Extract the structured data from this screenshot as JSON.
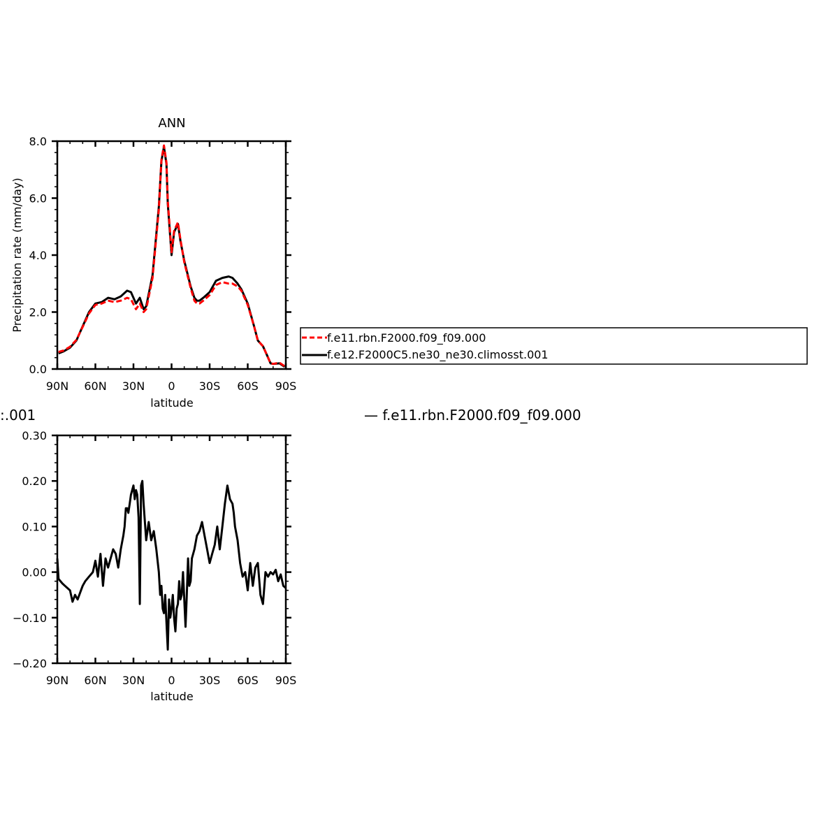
{
  "colors": {
    "axes": "#000000",
    "series_a": "#ff0000",
    "series_b": "#000000"
  },
  "legend": {
    "entries": [
      {
        "label": "f.e11.rbn.F2000.f09_f09.000",
        "style": "dashed",
        "color": "#ff0000"
      },
      {
        "label": "f.e12.F2000C5.ne30_ne30.climosst.001",
        "style": "solid",
        "color": "#000000"
      }
    ]
  },
  "clipped_text": {
    "left": ":.001",
    "right": "— f.e11.rbn.F2000.f09_f09.000"
  },
  "chart_data": [
    {
      "type": "line",
      "title": "ANN",
      "xlabel": "latitude",
      "ylabel": "Precipitation rate (mm/day)",
      "xlim": [
        90,
        -90
      ],
      "ylim": [
        0,
        8
      ],
      "xticks": [
        {
          "v": 90,
          "label": "90N"
        },
        {
          "v": 60,
          "label": "60N"
        },
        {
          "v": 30,
          "label": "30N"
        },
        {
          "v": 0,
          "label": "0"
        },
        {
          "v": -30,
          "label": "30S"
        },
        {
          "v": -60,
          "label": "60S"
        },
        {
          "v": -90,
          "label": "90S"
        }
      ],
      "yticks": [
        {
          "v": 0,
          "label": "0.0"
        },
        {
          "v": 2,
          "label": "2.0"
        },
        {
          "v": 4,
          "label": "4.0"
        },
        {
          "v": 6,
          "label": "6.0"
        },
        {
          "v": 8,
          "label": "8.0"
        }
      ],
      "legend_position": "right",
      "series": [
        {
          "name": "f.e12.F2000C5.ne30_ne30.climosst.001",
          "style": "solid",
          "color": "#000000",
          "x": [
            89,
            85,
            80,
            75,
            70,
            65,
            60,
            55,
            50,
            45,
            40,
            35,
            32,
            28,
            25,
            22,
            20,
            15,
            10,
            8,
            6,
            4,
            3,
            0,
            -2,
            -5,
            -7,
            -10,
            -15,
            -18,
            -20,
            -22,
            -25,
            -30,
            -35,
            -40,
            -45,
            -48,
            -52,
            -55,
            -60,
            -65,
            -68,
            -72,
            -75,
            -78,
            -80,
            -85,
            -89
          ],
          "y": [
            0.55,
            0.62,
            0.75,
            1.0,
            1.5,
            2.0,
            2.3,
            2.35,
            2.5,
            2.45,
            2.55,
            2.75,
            2.7,
            2.3,
            2.5,
            2.1,
            2.2,
            3.3,
            5.7,
            7.3,
            7.8,
            7.2,
            5.8,
            4.0,
            4.8,
            5.1,
            4.5,
            3.8,
            2.9,
            2.5,
            2.4,
            2.4,
            2.5,
            2.7,
            3.1,
            3.2,
            3.25,
            3.2,
            3.0,
            2.8,
            2.3,
            1.5,
            1.0,
            0.8,
            0.5,
            0.2,
            0.18,
            0.2,
            0.08
          ]
        },
        {
          "name": "f.e11.rbn.F2000.f09_f09.000",
          "style": "dashed",
          "color": "#ff0000",
          "x": [
            89,
            85,
            80,
            75,
            70,
            65,
            60,
            55,
            50,
            45,
            40,
            35,
            32,
            28,
            25,
            22,
            20,
            15,
            10,
            8,
            6,
            4,
            3,
            0,
            -2,
            -5,
            -7,
            -10,
            -15,
            -18,
            -20,
            -22,
            -25,
            -30,
            -35,
            -40,
            -45,
            -48,
            -52,
            -55,
            -60,
            -65,
            -68,
            -72,
            -75,
            -78,
            -80,
            -85,
            -89
          ],
          "y": [
            0.6,
            0.65,
            0.78,
            1.02,
            1.48,
            1.95,
            2.25,
            2.3,
            2.4,
            2.35,
            2.4,
            2.5,
            2.45,
            2.1,
            2.3,
            2.0,
            2.1,
            3.2,
            5.6,
            7.35,
            7.85,
            7.25,
            5.9,
            4.1,
            4.85,
            5.15,
            4.55,
            3.75,
            2.85,
            2.4,
            2.3,
            2.3,
            2.4,
            2.6,
            2.95,
            3.05,
            3.0,
            3.0,
            2.9,
            2.75,
            2.25,
            1.5,
            1.0,
            0.8,
            0.5,
            0.2,
            0.18,
            0.22,
            0.1
          ]
        }
      ]
    },
    {
      "type": "line",
      "xlabel": "latitude",
      "ylabel": "",
      "xlim": [
        90,
        -90
      ],
      "ylim": [
        -0.2,
        0.3
      ],
      "xticks": [
        {
          "v": 90,
          "label": "90N"
        },
        {
          "v": 60,
          "label": "60N"
        },
        {
          "v": 30,
          "label": "30N"
        },
        {
          "v": 0,
          "label": "0"
        },
        {
          "v": -30,
          "label": "30S"
        },
        {
          "v": -60,
          "label": "60S"
        },
        {
          "v": -90,
          "label": "90S"
        }
      ],
      "yticks": [
        {
          "v": -0.2,
          "label": "−0.20"
        },
        {
          "v": -0.1,
          "label": "−0.10"
        },
        {
          "v": 0,
          "label": "0.00"
        },
        {
          "v": 0.1,
          "label": "0.10"
        },
        {
          "v": 0.2,
          "label": "0.20"
        },
        {
          "v": 0.3,
          "label": "0.30"
        }
      ],
      "series": [
        {
          "name": "",
          "style": "solid",
          "color": "#000000",
          "x": [
            90,
            89,
            86,
            84,
            80,
            78,
            76,
            74,
            70,
            68,
            65,
            62,
            60,
            58,
            56,
            54,
            52,
            50,
            48,
            46,
            44,
            42,
            40,
            38,
            37,
            36,
            35,
            34,
            33,
            32,
            30,
            29,
            28,
            27,
            26,
            25,
            24,
            23,
            22,
            20,
            18,
            16,
            14,
            12,
            10,
            9,
            8,
            7,
            6,
            5,
            4,
            3,
            2,
            1,
            0,
            -1,
            -2,
            -3,
            -4,
            -5,
            -6,
            -7,
            -8,
            -9,
            -10,
            -11,
            -12,
            -13,
            -14,
            -15,
            -16,
            -18,
            -20,
            -22,
            -24,
            -26,
            -28,
            -30,
            -32,
            -34,
            -36,
            -38,
            -40,
            -42,
            -44,
            -46,
            -48,
            -49,
            -50,
            -52,
            -54,
            -56,
            -58,
            -60,
            -62,
            -64,
            -66,
            -68,
            -70,
            -72,
            -74,
            -76,
            -78,
            -80,
            -82,
            -84,
            -86,
            -88,
            -90
          ],
          "y": [
            0.03,
            -0.015,
            -0.025,
            -0.03,
            -0.04,
            -0.065,
            -0.05,
            -0.06,
            -0.03,
            -0.02,
            -0.01,
            0.0,
            0.025,
            -0.01,
            0.04,
            -0.03,
            0.03,
            0.01,
            0.03,
            0.05,
            0.04,
            0.01,
            0.05,
            0.08,
            0.1,
            0.14,
            0.14,
            0.13,
            0.15,
            0.17,
            0.19,
            0.16,
            0.18,
            0.17,
            0.12,
            -0.07,
            0.19,
            0.2,
            0.15,
            0.07,
            0.11,
            0.07,
            0.09,
            0.05,
            0.0,
            -0.05,
            -0.03,
            -0.08,
            -0.09,
            -0.05,
            -0.11,
            -0.17,
            -0.06,
            -0.1,
            -0.08,
            -0.05,
            -0.1,
            -0.13,
            -0.08,
            -0.07,
            -0.02,
            -0.06,
            -0.05,
            0.0,
            -0.06,
            -0.12,
            -0.05,
            0.03,
            -0.03,
            -0.02,
            0.03,
            0.05,
            0.08,
            0.09,
            0.11,
            0.08,
            0.05,
            0.02,
            0.04,
            0.06,
            0.1,
            0.05,
            0.1,
            0.15,
            0.19,
            0.16,
            0.15,
            0.13,
            0.1,
            0.07,
            0.02,
            -0.01,
            0.0,
            -0.04,
            0.02,
            -0.03,
            0.01,
            0.02,
            -0.05,
            -0.07,
            0.0,
            -0.01,
            0.0,
            -0.005,
            0.005,
            -0.02,
            -0.005,
            -0.03,
            -0.035
          ]
        }
      ]
    }
  ]
}
